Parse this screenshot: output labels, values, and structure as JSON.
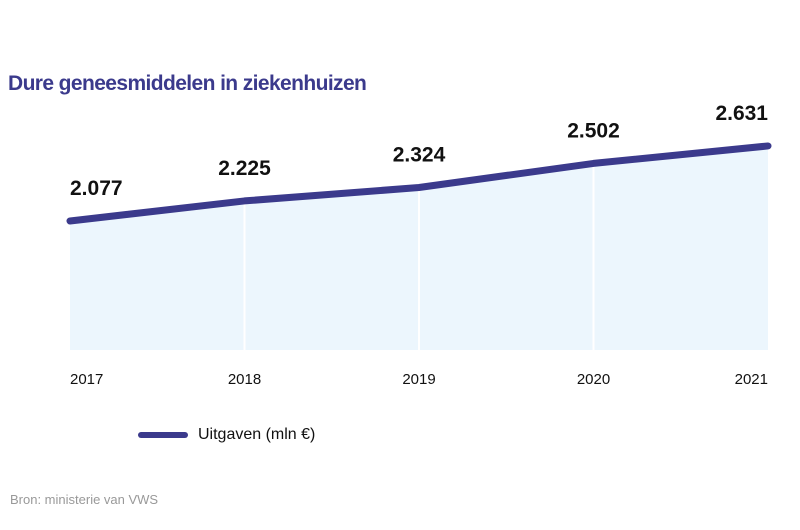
{
  "chart_data": {
    "type": "area",
    "title": "Dure geneesmiddelen in ziekenhuizen",
    "categories": [
      "2017",
      "2018",
      "2019",
      "2020",
      "2021"
    ],
    "series": [
      {
        "name": "Uitgaven (mln €)",
        "values": [
          2077,
          2225,
          2324,
          2502,
          2631
        ],
        "labels": [
          "2.077",
          "2.225",
          "2.324",
          "2.502",
          "2.631"
        ]
      }
    ],
    "xlabel": "",
    "ylabel": "",
    "grid": "vertical",
    "legend": "bottom-left",
    "colors": {
      "line": "#3b3a8c",
      "fill": "#ecf6fd"
    }
  },
  "source": "Bron: ministerie van VWS"
}
